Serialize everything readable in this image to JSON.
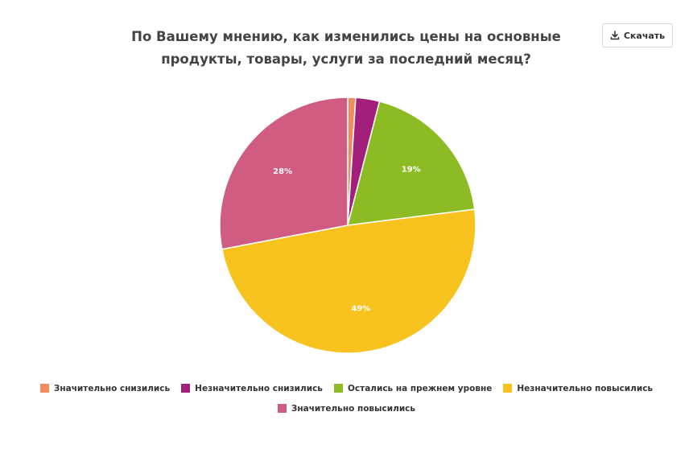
{
  "header": {
    "title_line1": "По Вашему мнению, как изменились цены на основные",
    "title_line2": "продукты, товары, услуги за последний месяц?",
    "download_label": "Скачать",
    "download_icon": "download-icon"
  },
  "chart_data": {
    "type": "pie",
    "title": "По Вашему мнению, как изменились цены на основные продукты, товары, услуги за последний месяц?",
    "categories": [
      "Значительно снизились",
      "Незначительно снизились",
      "Остались на прежнем уровне",
      "Незначительно повысились",
      "Значительно повысились"
    ],
    "values": [
      1,
      3,
      19,
      49,
      28
    ],
    "data_labels": [
      "",
      "",
      "19%",
      "49%",
      "28%"
    ],
    "colors": [
      "#f08c5e",
      "#a3207a",
      "#8cbb24",
      "#f8c31e",
      "#d05c82"
    ],
    "legend_position": "bottom"
  },
  "legend": {
    "items": [
      {
        "label": "Значительно снизились",
        "color": "#f08c5e"
      },
      {
        "label": "Незначительно снизились",
        "color": "#a3207a"
      },
      {
        "label": "Остались на прежнем уровне",
        "color": "#8cbb24"
      },
      {
        "label": "Незначительно повысились",
        "color": "#f8c31e"
      },
      {
        "label": "Значительно повысились",
        "color": "#d05c82"
      }
    ]
  }
}
